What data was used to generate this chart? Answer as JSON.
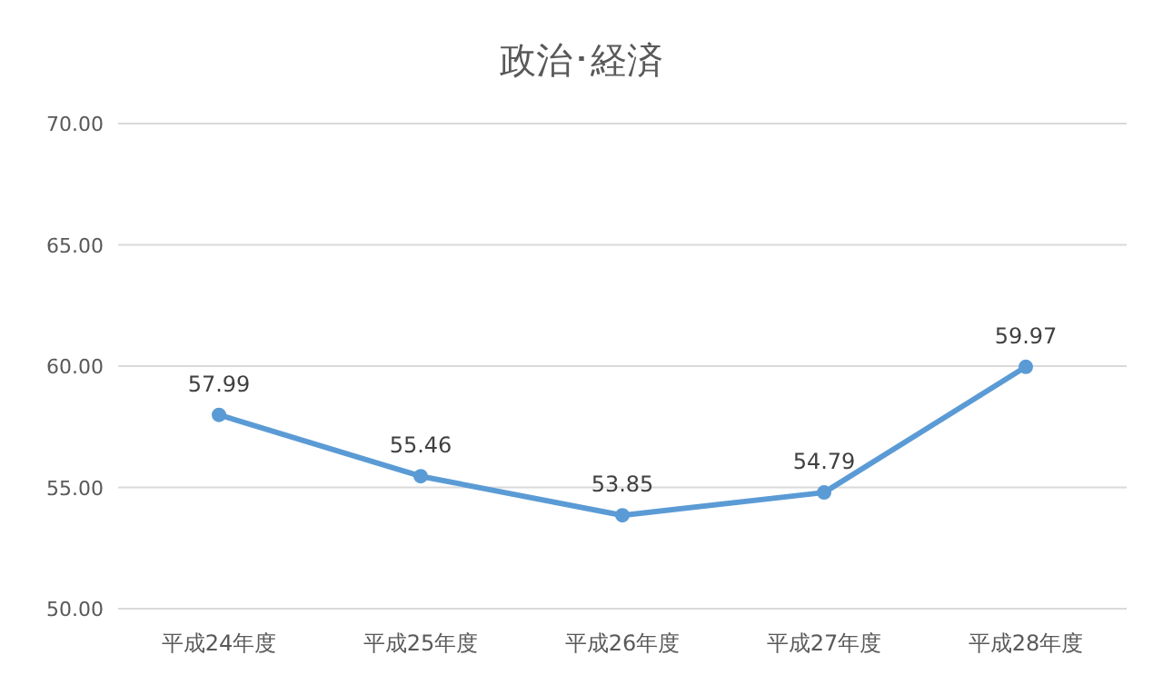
{
  "chart_data": {
    "type": "line",
    "title": "政治･経済",
    "categories": [
      "平成24年度",
      "平成25年度",
      "平成26年度",
      "平成27年度",
      "平成28年度"
    ],
    "series": [
      {
        "color": "#5b9bd5",
        "values": [
          57.99,
          55.46,
          53.85,
          54.79,
          59.97
        ]
      }
    ],
    "ylim": [
      50,
      70
    ],
    "yticks": [
      {
        "value": 50,
        "label": "50.00"
      },
      {
        "value": 55,
        "label": "55.00"
      },
      {
        "value": 60,
        "label": "60.00"
      },
      {
        "value": 65,
        "label": "65.00"
      },
      {
        "value": 70,
        "label": "70.00"
      }
    ],
    "grid": "y",
    "data_labels": true,
    "marker": "circle",
    "line_style": "solid"
  }
}
